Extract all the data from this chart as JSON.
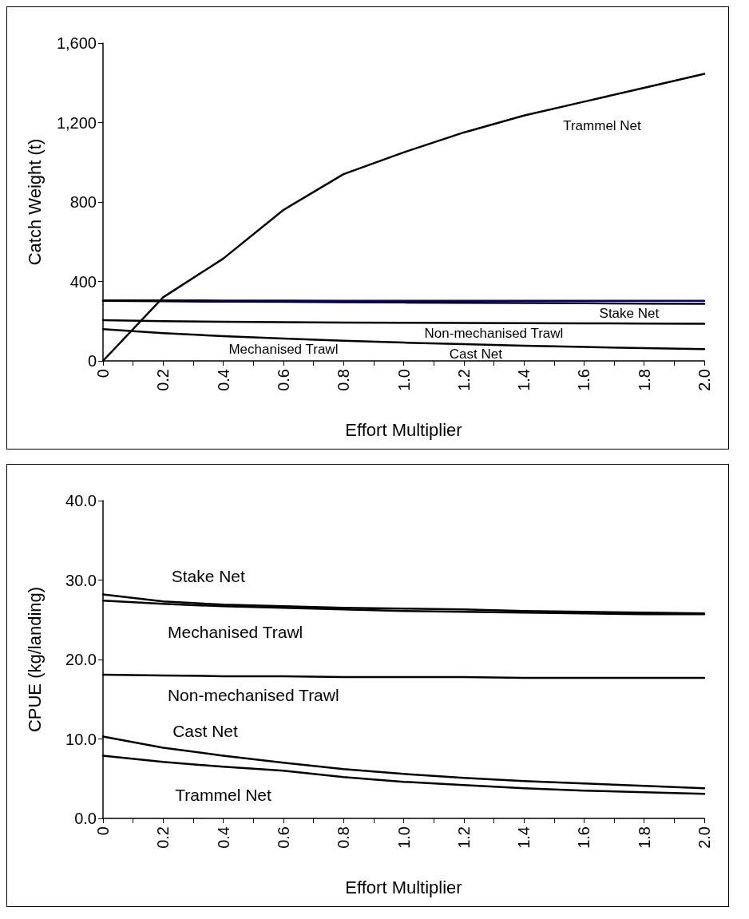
{
  "chart_data": [
    {
      "type": "line",
      "xlabel": "Effort Multiplier",
      "ylabel": "Catch Weight (t)",
      "x": [
        0,
        0.2,
        0.4,
        0.6,
        0.8,
        1.0,
        1.2,
        1.4,
        1.6,
        1.8,
        2.0
      ],
      "series": [
        {
          "color": "#000000",
          "values": [
            0,
            320,
            515,
            760,
            940,
            1050,
            1150,
            1235,
            1305,
            1375,
            1445
          ]
        },
        {
          "color": "#000080",
          "values": [
            305,
            305,
            304,
            304,
            303,
            303,
            303,
            303,
            303,
            303,
            303
          ]
        },
        {
          "color": "#000000",
          "values": [
            303,
            300,
            298,
            297,
            295,
            294,
            292,
            291,
            290,
            288,
            287
          ]
        },
        {
          "color": "#000000",
          "values": [
            205,
            200,
            197,
            195,
            193,
            192,
            191,
            190,
            189,
            188,
            187
          ]
        },
        {
          "color": "#000000",
          "values": [
            160,
            140,
            125,
            113,
            102,
            92,
            84,
            76,
            70,
            64,
            59
          ]
        }
      ],
      "xlim": [
        0,
        2
      ],
      "xticks": [
        0,
        {
          "value": 0.1,
          "label": null
        },
        0.2,
        {
          "value": 0.3,
          "label": null
        },
        0.4,
        {
          "value": 0.5,
          "label": null
        },
        0.6,
        {
          "value": 0.7,
          "label": null
        },
        0.8,
        {
          "value": 0.9,
          "label": null
        },
        {
          "value": 1,
          "label": "1.0"
        },
        {
          "value": 1.1,
          "label": null
        },
        1.2,
        {
          "value": 1.3,
          "label": null
        },
        1.4,
        {
          "value": 1.5,
          "label": null
        },
        1.6,
        {
          "value": 1.7,
          "label": null
        },
        1.8,
        {
          "value": 1.9,
          "label": null
        },
        {
          "value": 2,
          "label": "2.0"
        }
      ],
      "ylim": [
        0,
        1600
      ],
      "yticks": [
        0,
        400,
        800,
        {
          "value": 1200,
          "label": "1,200"
        },
        {
          "value": 1600,
          "label": "1,600"
        }
      ],
      "annotations": [
        "Trammel Net",
        "Stake Net",
        "Non-mechanised Trawl",
        "Mechanised Trawl",
        "Cast Net"
      ]
    },
    {
      "type": "line",
      "xlabel": "Effort Multiplier",
      "ylabel": "CPUE (kg/landing)",
      "x": [
        0,
        0.2,
        0.4,
        0.6,
        0.8,
        1.0,
        1.2,
        1.4,
        1.6,
        1.8,
        2.0
      ],
      "series": [
        {
          "color": "#000000",
          "values": [
            28.2,
            27.3,
            26.9,
            26.7,
            26.5,
            26.4,
            26.3,
            26.1,
            26.0,
            25.9,
            25.8
          ]
        },
        {
          "color": "#000000",
          "values": [
            27.4,
            27.0,
            26.7,
            26.5,
            26.3,
            26.1,
            26.0,
            25.9,
            25.8,
            25.7,
            25.7
          ]
        },
        {
          "color": "#000000",
          "values": [
            18.1,
            18.0,
            17.9,
            17.9,
            17.8,
            17.8,
            17.8,
            17.7,
            17.7,
            17.7,
            17.7
          ]
        },
        {
          "color": "#000000",
          "values": [
            10.3,
            8.9,
            7.9,
            7.0,
            6.2,
            5.6,
            5.1,
            4.7,
            4.4,
            4.1,
            3.8
          ]
        },
        {
          "color": "#000000",
          "values": [
            7.9,
            7.1,
            6.5,
            6.0,
            5.2,
            4.6,
            4.2,
            3.8,
            3.5,
            3.3,
            3.1
          ]
        }
      ],
      "xlim": [
        0,
        2
      ],
      "xticks": [
        0,
        {
          "value": 0.1,
          "label": null
        },
        0.2,
        {
          "value": 0.3,
          "label": null
        },
        0.4,
        {
          "value": 0.5,
          "label": null
        },
        0.6,
        {
          "value": 0.7,
          "label": null
        },
        0.8,
        {
          "value": 0.9,
          "label": null
        },
        {
          "value": 1,
          "label": "1.0"
        },
        {
          "value": 1.1,
          "label": null
        },
        1.2,
        {
          "value": 1.3,
          "label": null
        },
        1.4,
        {
          "value": 1.5,
          "label": null
        },
        1.6,
        {
          "value": 1.7,
          "label": null
        },
        1.8,
        {
          "value": 1.9,
          "label": null
        },
        {
          "value": 2,
          "label": "2.0"
        }
      ],
      "ylim": [
        0,
        40
      ],
      "yticks": [
        {
          "value": 0,
          "label": "0.0"
        },
        {
          "value": 10,
          "label": "10.0"
        },
        {
          "value": 20,
          "label": "20.0"
        },
        {
          "value": 30,
          "label": "30.0"
        },
        {
          "value": 40,
          "label": "40.0"
        }
      ],
      "annotations": [
        "Stake Net",
        "Mechanised Trawl",
        "Non-mechanised Trawl",
        "Cast Net",
        "Trammel Net"
      ]
    }
  ]
}
